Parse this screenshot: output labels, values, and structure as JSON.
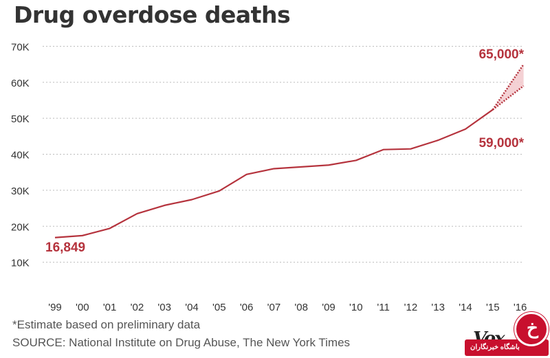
{
  "chart_data": {
    "type": "line",
    "title": "Drug overdose deaths",
    "xlabel": "",
    "ylabel": "",
    "categories": [
      "'99",
      "'00",
      "'01",
      "'02",
      "'03",
      "'04",
      "'05",
      "'06",
      "'07",
      "'08",
      "'09",
      "'10",
      "'11",
      "'12",
      "'13",
      "'14",
      "'15",
      "'16"
    ],
    "y_ticks": [
      "10K",
      "20K",
      "30K",
      "40K",
      "50K",
      "60K",
      "70K"
    ],
    "y_tick_values": [
      10000,
      20000,
      30000,
      40000,
      50000,
      60000,
      70000
    ],
    "ylim": [
      0,
      70000
    ],
    "grid": true,
    "series": [
      {
        "values": [
          16849,
          17400,
          19400,
          23500,
          25800,
          27400,
          29800,
          34400,
          36000,
          36500,
          37000,
          38300,
          41300,
          41500,
          43900,
          47000,
          52400,
          null
        ]
      }
    ],
    "estimates": {
      "from_category": "'15",
      "to_category": "'16",
      "from_value": 52400,
      "high": 65000,
      "low": 59000
    },
    "annotations": {
      "start": "16,849",
      "high": "65,000*",
      "low": "59,000*"
    },
    "colors": {
      "line": "#b5333d",
      "band": "#f2c9cd",
      "grid": "#bbbbbb",
      "text": "#333333"
    }
  },
  "footer": {
    "note": "*Estimate based on preliminary data",
    "source": "SOURCE: National Institute on Drug Abuse, The New York Times"
  },
  "logo": {
    "text": "Vox",
    "watermark_text": "باشگاه خبرنگاران"
  }
}
